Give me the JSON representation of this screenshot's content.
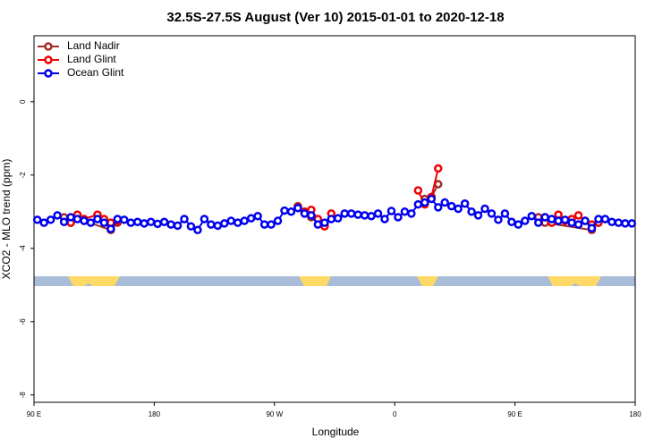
{
  "chart_data": {
    "type": "line",
    "title": "32.5S-27.5S August (Ver 10)   2015-01-01 to 2020-12-18",
    "x_label": "Longitude",
    "y_label": "XCO2 - MLO trend (ppm)",
    "xlim": [
      90,
      540
    ],
    "xticks": [
      {
        "value": 90,
        "label": "90 E"
      },
      180,
      {
        "value": 270,
        "label": "90 W"
      },
      {
        "value": 360,
        "label": "0"
      },
      {
        "value": 450,
        "label": "90 E"
      },
      {
        "value": 540,
        "label": "180"
      }
    ],
    "ylim": [
      -8.2,
      1.8
    ],
    "yticks": [
      -8,
      -6,
      -4,
      -2,
      0
    ],
    "legend": "top-left",
    "series": [
      {
        "name": "Land Nadir",
        "color": "#a52a2a",
        "x": [
          112.5,
          117.5,
          122.5,
          127.5,
          147.5,
          152.5,
          200,
          287.5,
          292.5,
          297.5,
          307.5,
          340,
          382.5,
          387.5,
          392.5,
          430,
          467.5,
          472.5,
          507.5,
          512.5
        ],
        "values": [
          -3.15,
          -3.3,
          -3.1,
          -3.25,
          -3.5,
          -3.3,
          null,
          -2.85,
          -3.0,
          -3.15,
          -3.35,
          null,
          -2.65,
          -2.6,
          -2.25,
          null,
          -3.15,
          -3.3,
          -3.5,
          -3.3
        ]
      },
      {
        "name": "Land Glint",
        "color": "#ee0000",
        "x": [
          117.5,
          122.5,
          127.5,
          137.5,
          142.5,
          147.5,
          152.5,
          200,
          287.5,
          292.5,
          297.5,
          302.5,
          307.5,
          312.5,
          340,
          377.5,
          382.5,
          387.5,
          392.5,
          430,
          472.5,
          477.5,
          482.5,
          487.5,
          492.5,
          497.5,
          502.5,
          507.5,
          512.5
        ],
        "values": [
          -3.3,
          -3.08,
          -3.2,
          -3.08,
          -3.2,
          -3.3,
          -3.25,
          null,
          -2.88,
          -3.0,
          -2.95,
          -3.2,
          -3.4,
          -3.05,
          null,
          -2.42,
          -2.8,
          -2.6,
          -1.82,
          null,
          -3.15,
          -3.3,
          -3.08,
          -3.25,
          -3.2,
          -3.1,
          -3.25,
          -3.35,
          -3.3
        ]
      },
      {
        "name": "Ocean Glint",
        "color": "#0000ee",
        "x": [
          92.5,
          97.5,
          102.5,
          107.5,
          112.5,
          117.5,
          122.5,
          127.5,
          132.5,
          137.5,
          142.5,
          147.5,
          152.5,
          157.5,
          162.5,
          167.5,
          172.5,
          177.5,
          182.5,
          187.5,
          192.5,
          197.5,
          202.5,
          207.5,
          212.5,
          217.5,
          222.5,
          227.5,
          232.5,
          237.5,
          242.5,
          247.5,
          252.5,
          257.5,
          262.5,
          267.5,
          272.5,
          277.5,
          282.5,
          287.5,
          292.5,
          297.5,
          302.5,
          307.5,
          312.5,
          317.5,
          322.5,
          327.5,
          332.5,
          337.5,
          342.5,
          347.5,
          352.5,
          357.5,
          362.5,
          367.5,
          372.5,
          377.5,
          382.5,
          387.5,
          392.5,
          397.5,
          402.5,
          407.5,
          412.5,
          417.5,
          422.5,
          427.5,
          432.5,
          437.5,
          442.5,
          447.5,
          452.5,
          457.5,
          462.5,
          467.5,
          472.5,
          477.5,
          482.5,
          487.5,
          492.5,
          497.5,
          502.5,
          507.5,
          512.5,
          517.5,
          522.5,
          527.5,
          532.5,
          537.5
        ],
        "values": [
          -3.22,
          -3.3,
          -3.22,
          -3.1,
          -3.28,
          -3.15,
          -3.2,
          -3.25,
          -3.3,
          -3.2,
          -3.3,
          -3.47,
          -3.2,
          -3.22,
          -3.3,
          -3.28,
          -3.32,
          -3.28,
          -3.33,
          -3.28,
          -3.35,
          -3.38,
          -3.2,
          -3.4,
          -3.5,
          -3.2,
          -3.35,
          -3.38,
          -3.32,
          -3.25,
          -3.3,
          -3.25,
          -3.18,
          -3.12,
          -3.35,
          -3.35,
          -3.25,
          -2.97,
          -3.0,
          -2.9,
          -3.05,
          -3.1,
          -3.35,
          -3.3,
          -3.2,
          -3.18,
          -3.05,
          -3.05,
          -3.08,
          -3.1,
          -3.12,
          -3.05,
          -3.2,
          -2.98,
          -3.15,
          -3.0,
          -3.05,
          -2.8,
          -2.75,
          -2.65,
          -2.88,
          -2.75,
          -2.85,
          -2.92,
          -2.78,
          -3.0,
          -3.1,
          -2.92,
          -3.05,
          -3.22,
          -3.05,
          -3.28,
          -3.35,
          -3.25,
          -3.12,
          -3.3,
          -3.15,
          -3.2,
          -3.25,
          -3.22,
          -3.3,
          -3.35,
          -3.25,
          -3.45,
          -3.2,
          -3.2,
          -3.28,
          -3.3,
          -3.32,
          -3.32
        ]
      }
    ]
  }
}
